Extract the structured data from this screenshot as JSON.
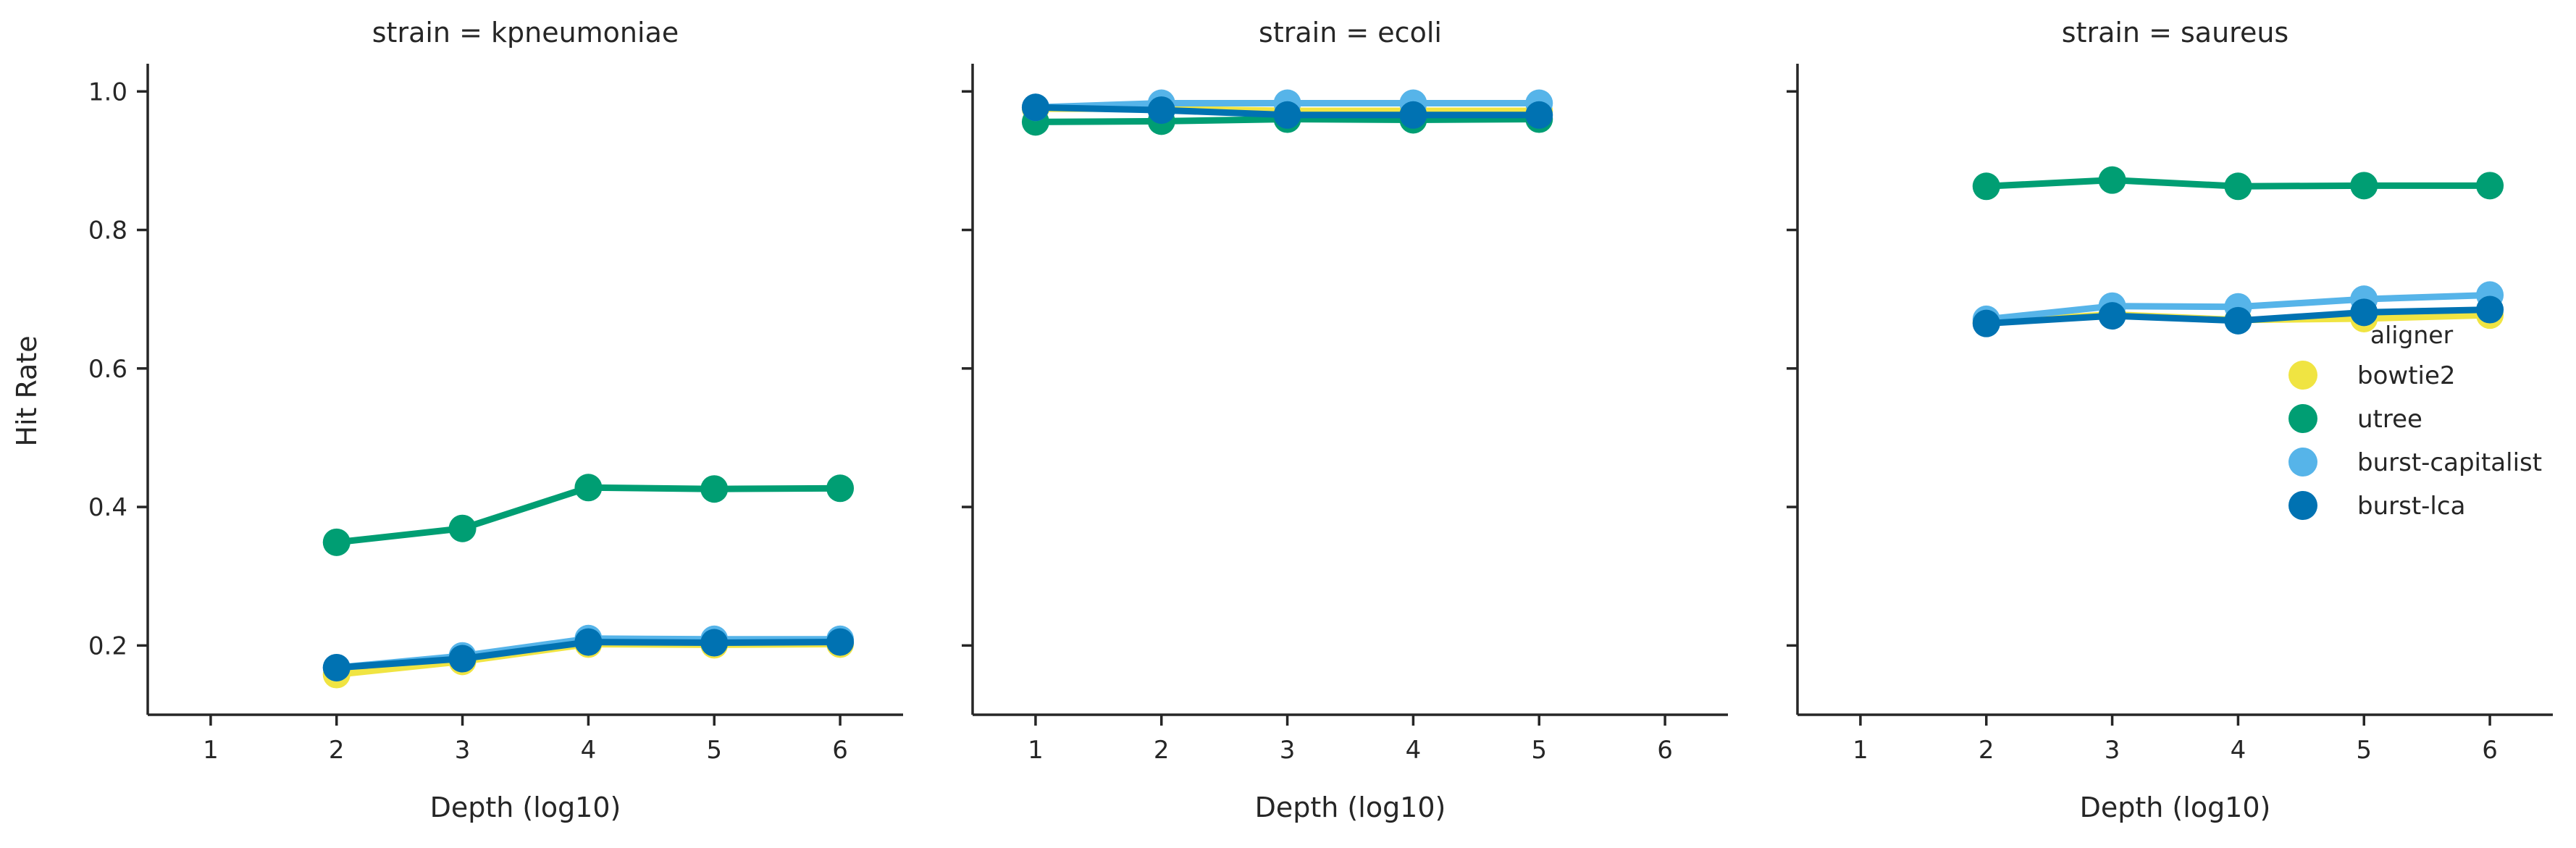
{
  "chart_data": {
    "type": "line",
    "facet_label_prefix": "strain = ",
    "xlabel": "Depth (log10)",
    "ylabel": "Hit Rate",
    "xlim": [
      0.5,
      6.5
    ],
    "ylim": [
      0.1,
      1.04
    ],
    "xticks": [
      "1",
      "2",
      "3",
      "4",
      "5",
      "6"
    ],
    "yticks": [
      "0.2",
      "0.4",
      "0.6",
      "0.8",
      "1.0"
    ],
    "legend": {
      "title": "aligner",
      "placement": "right of third panel"
    },
    "series_styles": [
      {
        "name": "bowtie2",
        "color": "#f0e442"
      },
      {
        "name": "utree",
        "color": "#009e73"
      },
      {
        "name": "burst-capitalist",
        "color": "#56b4e9"
      },
      {
        "name": "burst-lca",
        "color": "#0072b2"
      }
    ],
    "panels": [
      {
        "strain": "kpneumoniae",
        "series": [
          {
            "name": "bowtie2",
            "x": [
              2,
              3,
              4,
              5,
              6
            ],
            "y": [
              0.158,
              0.177,
              0.202,
              0.201,
              0.202
            ]
          },
          {
            "name": "utree",
            "x": [
              2,
              3,
              4,
              5,
              6
            ],
            "y": [
              0.349,
              0.369,
              0.428,
              0.426,
              0.427
            ]
          },
          {
            "name": "burst-capitalist",
            "x": [
              2,
              3,
              4,
              5,
              6
            ],
            "y": [
              0.168,
              0.185,
              0.21,
              0.209,
              0.209
            ]
          },
          {
            "name": "burst-lca",
            "x": [
              2,
              3,
              4,
              5,
              6
            ],
            "y": [
              0.168,
              0.181,
              0.205,
              0.204,
              0.205
            ]
          }
        ]
      },
      {
        "strain": "ecoli",
        "series": [
          {
            "name": "bowtie2",
            "x": [
              1,
              2,
              3,
              4,
              5
            ],
            "y": [
              0.975,
              0.975,
              0.972,
              0.972,
              0.972
            ]
          },
          {
            "name": "utree",
            "x": [
              1,
              2,
              3,
              4,
              5
            ],
            "y": [
              0.956,
              0.957,
              0.96,
              0.959,
              0.96
            ]
          },
          {
            "name": "burst-capitalist",
            "x": [
              1,
              2,
              3,
              4,
              5
            ],
            "y": [
              0.977,
              0.983,
              0.983,
              0.983,
              0.983
            ]
          },
          {
            "name": "burst-lca",
            "x": [
              1,
              2,
              3,
              4,
              5
            ],
            "y": [
              0.977,
              0.973,
              0.966,
              0.966,
              0.966
            ]
          }
        ]
      },
      {
        "strain": "saureus",
        "series": [
          {
            "name": "bowtie2",
            "x": [
              2,
              3,
              4,
              5,
              6
            ],
            "y": [
              0.667,
              0.678,
              0.67,
              0.672,
              0.677
            ]
          },
          {
            "name": "utree",
            "x": [
              2,
              3,
              4,
              5,
              6
            ],
            "y": [
              0.863,
              0.872,
              0.863,
              0.864,
              0.864
            ]
          },
          {
            "name": "burst-capitalist",
            "x": [
              2,
              3,
              4,
              5,
              6
            ],
            "y": [
              0.671,
              0.69,
              0.689,
              0.7,
              0.706
            ]
          },
          {
            "name": "burst-lca",
            "x": [
              2,
              3,
              4,
              5,
              6
            ],
            "y": [
              0.665,
              0.676,
              0.669,
              0.681,
              0.685
            ]
          }
        ]
      }
    ]
  }
}
